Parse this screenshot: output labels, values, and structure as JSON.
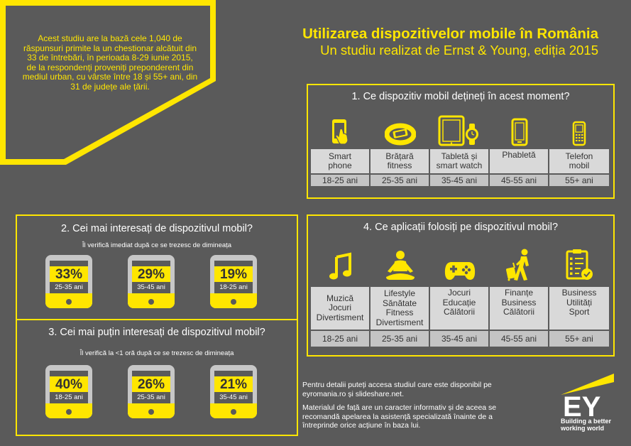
{
  "intro": {
    "text": "Acest studiu are la bază cele 1,040 de răspunsuri primite la un chestionar alcătuit din 33 de întrebări, în perioada 8-29 iunie 2015, de la respondenți proveniți preponderent din mediul urban, cu vârste între 18 și 55+ ani, din 31 de județe ale țării."
  },
  "header": {
    "title": "Utilizarea dispozitivelor mobile în România",
    "subtitle": "Un studiu realizat de Ernst & Young, ediția 2015"
  },
  "q1": {
    "title": "1.  Ce dispozitiv mobil dețineți în acest moment?",
    "items": [
      {
        "line1": "Smart",
        "line2": "phone",
        "age": "18-25 ani",
        "icon": "smartphone-touch-icon"
      },
      {
        "line1": "Brățară",
        "line2": "fitness",
        "age": "25-35 ani",
        "icon": "fitness-band-icon"
      },
      {
        "line1": "Tabletă și",
        "line2": "smart watch",
        "age": "35-45 ani",
        "icon": "tablet-watch-icon"
      },
      {
        "line1": "Phabletă",
        "line2": "",
        "age": "45-55 ani",
        "icon": "phablet-icon"
      },
      {
        "line1": "Telefon",
        "line2": "mobil",
        "age": "55+ ani",
        "icon": "feature-phone-icon"
      }
    ]
  },
  "q2": {
    "title": "2.  Cei mai interesați de dispozitivul mobil?",
    "subtitle": "Îl verifică imediat după ce se trezesc de dimineața",
    "items": [
      {
        "percent": "33%",
        "age": "25-35 ani"
      },
      {
        "percent": "29%",
        "age": "35-45 ani"
      },
      {
        "percent": "19%",
        "age": "18-25 ani"
      }
    ]
  },
  "q3": {
    "title": "3.  Cei mai puțin interesați de dispozitivul mobil?",
    "subtitle": "Îl verifică la <1 oră după ce se trezesc de dimineața",
    "items": [
      {
        "percent": "40%",
        "age": "18-25 ani"
      },
      {
        "percent": "26%",
        "age": "25-35 ani"
      },
      {
        "percent": "21%",
        "age": "35-45 ani"
      }
    ]
  },
  "q4": {
    "title": "4.  Ce aplicații folosiți pe dispozitivul mobil?",
    "items": [
      {
        "lines": [
          "Muzică",
          "Jocuri",
          "Divertisment"
        ],
        "age": "18-25 ani",
        "icon": "music-note-icon"
      },
      {
        "lines": [
          "Lifestyle",
          "Sănătate",
          "Fitness",
          "Divertisment"
        ],
        "age": "25-35 ani",
        "icon": "meditation-icon"
      },
      {
        "lines": [
          "Jocuri",
          "Educație",
          "Călătorii"
        ],
        "age": "35-45 ani",
        "icon": "gamepad-icon"
      },
      {
        "lines": [
          "Finanțe",
          "Business",
          "Călătorii"
        ],
        "age": "45-55 ani",
        "icon": "traveler-icon"
      },
      {
        "lines": [
          "Business",
          "Utilități",
          "Sport"
        ],
        "age": "55+ ani",
        "icon": "checklist-icon"
      }
    ]
  },
  "footer": {
    "details": "Pentru detalii puteți accesa studiul care este disponibil pe eyromania.ro și slideshare.net.",
    "disclaimer": "Materialul de față are un caracter informativ și de aceea se recomandă apelarea la asistență specializată înainte de a întreprinde orice acțiune în baza lui."
  },
  "brand": {
    "logo": "EY",
    "tagline_1": "Building a better",
    "tagline_2": "working world",
    "accent": "#ffe600",
    "background": "#5a5a5a"
  }
}
